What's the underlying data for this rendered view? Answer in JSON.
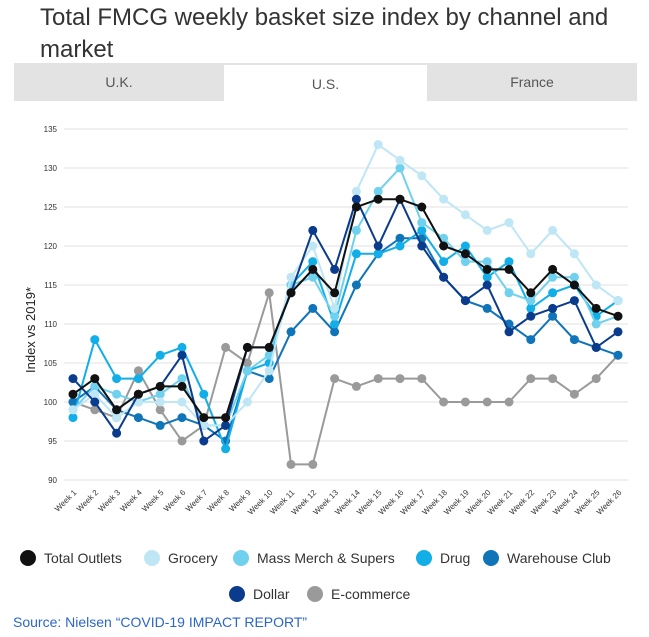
{
  "title": "Total FMCG weekly basket size index by channel and market",
  "tabs": [
    {
      "label": "U.K.",
      "active": false
    },
    {
      "label": "U.S.",
      "active": true
    },
    {
      "label": "France",
      "active": false
    }
  ],
  "source": "Source: Nielsen “COVID-19 IMPACT REPORT”",
  "chart_data": {
    "type": "line",
    "title": "Total FMCG weekly basket size index by channel and market",
    "ylabel": "Index vs 2019*",
    "xlabel": "",
    "ylim": [
      90,
      135
    ],
    "yticks": [
      90,
      95,
      100,
      105,
      110,
      115,
      120,
      125,
      130,
      135
    ],
    "grid": true,
    "legend": "bottom",
    "categories": [
      "Week 1",
      "Week 2",
      "Week 3",
      "Week 4",
      "Week 5",
      "Week 6",
      "Week 7",
      "Week 8",
      "Week 9",
      "Week 10",
      "Week 11",
      "Week 12",
      "Week 13",
      "Week 14",
      "Week 15",
      "Week 16",
      "Week 17",
      "Week 18",
      "Week 19",
      "Week 20",
      "Week 21",
      "Week 22",
      "Week 23",
      "Week 24",
      "Week 25",
      "Week 26"
    ],
    "series": [
      {
        "name": "Total Outlets",
        "color": "#111111",
        "values": [
          101,
          103,
          99,
          101,
          102,
          102,
          98,
          98,
          107,
          107,
          114,
          117,
          114,
          125,
          126,
          126,
          125,
          120,
          119,
          117,
          117,
          114,
          117,
          115,
          112,
          111
        ]
      },
      {
        "name": "Grocery",
        "color": "#bfe6f5",
        "values": [
          99,
          101,
          98,
          100,
          100,
          100,
          97,
          97,
          100,
          104,
          116,
          120,
          112,
          127,
          133,
          131,
          129,
          126,
          124,
          122,
          123,
          119,
          122,
          119,
          115,
          113
        ]
      },
      {
        "name": "Mass Merch & Supers",
        "color": "#6fd1ee",
        "values": [
          99,
          102,
          101,
          100,
          101,
          103,
          97,
          97,
          104,
          106,
          115,
          116,
          111,
          122,
          127,
          130,
          123,
          121,
          118,
          118,
          114,
          113,
          116,
          116,
          110,
          111
        ]
      },
      {
        "name": "Drug",
        "color": "#12aee8",
        "values": [
          98,
          108,
          103,
          103,
          106,
          107,
          101,
          94,
          104,
          105,
          115,
          118,
          110,
          119,
          119,
          120,
          122,
          118,
          120,
          116,
          118,
          112,
          114,
          115,
          111,
          113
        ]
      },
      {
        "name": "Warehouse Club",
        "color": "#0f74b8",
        "values": [
          100,
          102,
          99,
          98,
          97,
          98,
          97,
          95,
          104,
          103,
          109,
          112,
          109,
          115,
          119,
          121,
          121,
          116,
          113,
          112,
          110,
          108,
          111,
          108,
          107,
          106
        ]
      },
      {
        "name": "Dollar",
        "color": "#0a3b8c",
        "values": [
          103,
          100,
          96,
          101,
          102,
          106,
          95,
          97,
          107,
          107,
          114,
          122,
          117,
          126,
          120,
          126,
          120,
          116,
          113,
          115,
          109,
          111,
          112,
          113,
          107,
          109
        ]
      },
      {
        "name": "E-commerce",
        "color": "#9a9a9a",
        "values": [
          100,
          99,
          98,
          104,
          99,
          95,
          97,
          107,
          105,
          114,
          92,
          92,
          103,
          102,
          103,
          103,
          103,
          100,
          100,
          100,
          100,
          103,
          103,
          101,
          103,
          106
        ]
      }
    ]
  }
}
